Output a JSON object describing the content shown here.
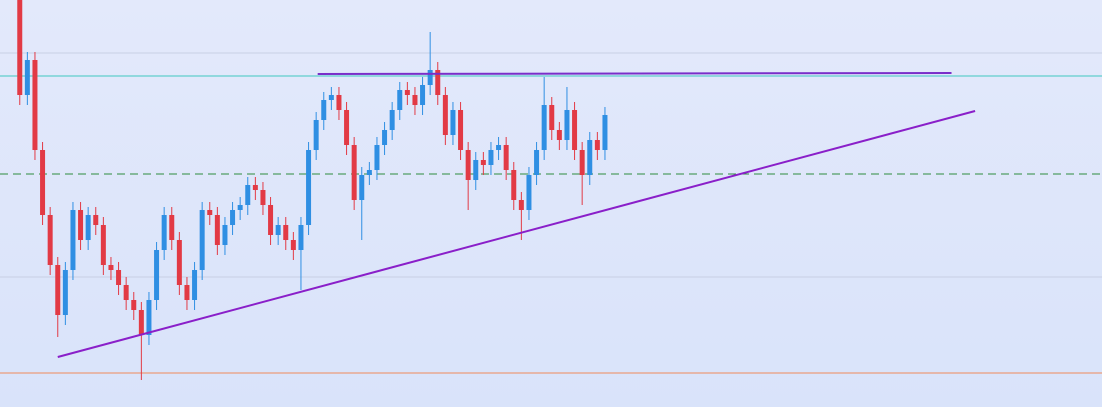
{
  "chart_data": {
    "type": "candlestick",
    "ylim": [
      0,
      407
    ],
    "xlim": [
      -2.6,
      142.4
    ],
    "up_color": "#2f8fe3",
    "down_color": "#e23a45",
    "open": [
      407,
      312,
      347,
      257,
      192,
      142,
      92,
      137,
      197,
      167,
      192,
      182,
      142,
      137,
      122,
      107,
      97,
      72,
      107,
      157,
      192,
      167,
      122,
      107,
      137,
      197,
      192,
      162,
      182,
      197,
      202,
      222,
      217,
      202,
      172,
      182,
      167,
      157,
      182,
      257,
      287,
      307,
      312,
      297,
      262,
      207,
      232,
      237,
      262,
      277,
      297,
      317,
      312,
      302,
      322,
      337,
      312,
      272,
      297,
      257,
      227,
      247,
      242,
      257,
      262,
      237,
      207,
      197,
      232,
      257,
      302,
      277,
      267,
      297,
      257,
      232,
      267,
      257
    ],
    "high": [
      407,
      355,
      355,
      265,
      200,
      150,
      145,
      205,
      205,
      200,
      200,
      190,
      150,
      145,
      130,
      115,
      105,
      115,
      165,
      200,
      200,
      175,
      130,
      145,
      205,
      205,
      200,
      190,
      205,
      210,
      230,
      230,
      225,
      210,
      190,
      190,
      175,
      190,
      265,
      295,
      315,
      320,
      320,
      305,
      270,
      240,
      245,
      270,
      285,
      305,
      325,
      325,
      320,
      330,
      375,
      345,
      320,
      305,
      305,
      265,
      255,
      255,
      265,
      270,
      270,
      245,
      215,
      240,
      265,
      330,
      310,
      285,
      320,
      305,
      265,
      275,
      275,
      300
    ],
    "low": [
      302,
      302,
      247,
      182,
      132,
      70,
      82,
      127,
      157,
      157,
      172,
      132,
      127,
      112,
      97,
      87,
      27,
      62,
      97,
      147,
      157,
      112,
      97,
      97,
      127,
      182,
      152,
      152,
      172,
      187,
      192,
      207,
      192,
      162,
      162,
      157,
      147,
      117,
      172,
      247,
      277,
      297,
      287,
      252,
      197,
      167,
      222,
      227,
      252,
      267,
      287,
      302,
      292,
      292,
      312,
      302,
      262,
      262,
      247,
      197,
      217,
      232,
      232,
      247,
      227,
      197,
      167,
      187,
      222,
      247,
      267,
      257,
      257,
      247,
      202,
      222,
      247,
      247
    ],
    "close": [
      312,
      347,
      257,
      192,
      142,
      92,
      137,
      197,
      167,
      192,
      182,
      142,
      137,
      122,
      107,
      97,
      72,
      107,
      157,
      192,
      167,
      122,
      107,
      137,
      197,
      192,
      162,
      182,
      197,
      202,
      222,
      217,
      202,
      172,
      182,
      167,
      157,
      182,
      257,
      287,
      307,
      312,
      297,
      262,
      207,
      232,
      237,
      262,
      277,
      297,
      317,
      312,
      302,
      322,
      337,
      312,
      272,
      297,
      257,
      227,
      247,
      242,
      257,
      262,
      237,
      207,
      197,
      232,
      257,
      302,
      277,
      267,
      297,
      257,
      232,
      267,
      257,
      292
    ],
    "hlines": [
      {
        "value": 354,
        "color": "#c8d0e4",
        "dash": false
      },
      {
        "value": 331,
        "color": "#3fc9c0",
        "dash": false
      },
      {
        "value": 233,
        "color": "#2e8b3e",
        "dash": true
      },
      {
        "value": 130,
        "color": "#c8d0e4",
        "dash": false
      },
      {
        "value": 34,
        "color": "#f08a5a",
        "dash": false
      }
    ],
    "trendlines": [
      {
        "x": [
          5,
          125.7
        ],
        "y": [
          50,
          296
        ],
        "color": "#8a1fc9"
      },
      {
        "x": [
          39.2,
          122.6
        ],
        "y": [
          333,
          334
        ],
        "color": "#7a2fc9"
      }
    ]
  }
}
